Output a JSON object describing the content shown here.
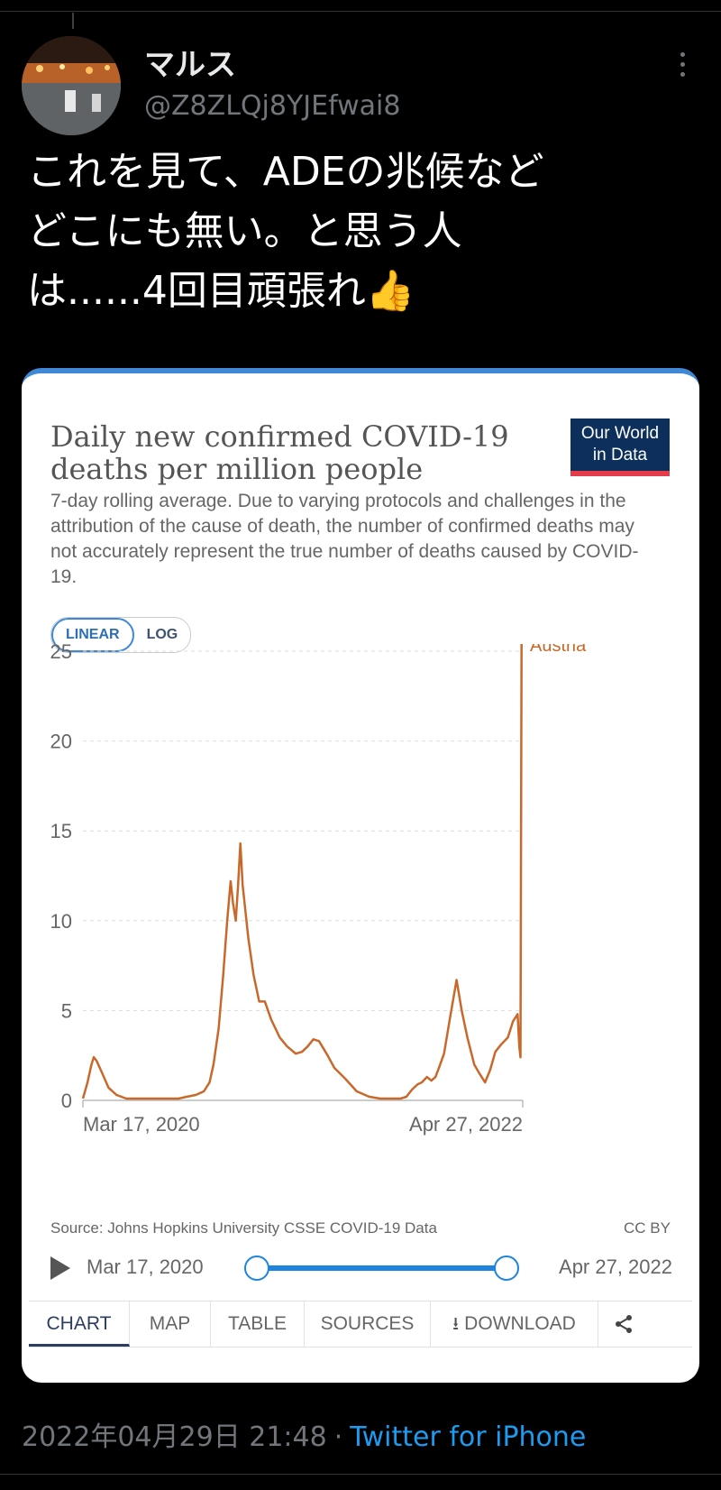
{
  "tweet": {
    "display_name": "マルス",
    "handle": "@Z8ZLQj8YJEfwai8",
    "text_line1": "これを見て、ADEの兆候など",
    "text_line2": "どこにも無い。と思う人",
    "text_line3": "は......4回目頑張れ",
    "emoji": "👍",
    "timestamp": "2022年04月29日 21:48",
    "separator": "·",
    "client": "Twitter for iPhone"
  },
  "card": {
    "title": "Daily new confirmed COVID-19 deaths per million people",
    "logo_line1": "Our World",
    "logo_line2": "in Data",
    "subtitle": "7-day rolling average. Due to varying protocols and challenges in the attribution of the cause of death, the number of confirmed deaths may not accurately represent the true number of deaths caused by COVID-19.",
    "scale_linear": "LINEAR",
    "scale_log": "LOG",
    "source": "Source: Johns Hopkins University CSSE COVID-19 Data",
    "license": "CC BY",
    "timeline_start": "Mar 17, 2020",
    "timeline_end": "Apr 27, 2022",
    "tabs": [
      "CHART",
      "MAP",
      "TABLE",
      "SOURCES",
      "DOWNLOAD"
    ],
    "download_icon": "download-icon",
    "share_icon": "share-icon",
    "accent": "#3f88d6",
    "series_color": "#c8692b"
  },
  "chart_data": {
    "type": "line",
    "title": "Daily new confirmed COVID-19 deaths per million people",
    "ylim": [
      0,
      25
    ],
    "yticks": [
      0,
      5,
      10,
      15,
      20,
      25
    ],
    "xlabels": [
      "Mar 17, 2020",
      "Apr 27, 2022"
    ],
    "grid": true,
    "series": [
      {
        "name": "Austria",
        "x": [
          "2020-03-17",
          "2020-03-25",
          "2020-04-01",
          "2020-04-05",
          "2020-04-10",
          "2020-04-20",
          "2020-05-01",
          "2020-05-15",
          "2020-06-01",
          "2020-07-01",
          "2020-08-01",
          "2020-09-01",
          "2020-09-15",
          "2020-10-01",
          "2020-10-15",
          "2020-10-25",
          "2020-11-01",
          "2020-11-10",
          "2020-11-18",
          "2020-11-25",
          "2020-12-01",
          "2020-12-05",
          "2020-12-10",
          "2020-12-14",
          "2020-12-18",
          "2020-12-22",
          "2021-01-01",
          "2021-01-10",
          "2021-01-20",
          "2021-01-30",
          "2021-02-10",
          "2021-02-25",
          "2021-03-10",
          "2021-03-25",
          "2021-04-05",
          "2021-04-15",
          "2021-04-25",
          "2021-05-05",
          "2021-05-20",
          "2021-06-01",
          "2021-06-20",
          "2021-07-10",
          "2021-08-01",
          "2021-08-20",
          "2021-09-01",
          "2021-09-15",
          "2021-09-25",
          "2021-10-05",
          "2021-10-15",
          "2021-10-25",
          "2021-11-01",
          "2021-11-10",
          "2021-11-18",
          "2021-11-25",
          "2021-12-01",
          "2021-12-10",
          "2021-12-20",
          "2022-01-01",
          "2022-01-10",
          "2022-01-20",
          "2022-02-01",
          "2022-02-10",
          "2022-02-20",
          "2022-03-01",
          "2022-03-10",
          "2022-03-20",
          "2022-04-01",
          "2022-04-10",
          "2022-04-18",
          "2022-04-21",
          "2022-04-23",
          "2022-04-25",
          "2022-04-27"
        ],
        "values": [
          0.1,
          1.0,
          2.0,
          2.4,
          2.2,
          1.5,
          0.7,
          0.3,
          0.1,
          0.1,
          0.1,
          0.1,
          0.2,
          0.3,
          0.5,
          1.0,
          2.0,
          4.0,
          7.0,
          10.0,
          12.2,
          11.0,
          10.0,
          12.0,
          14.3,
          12.0,
          9.0,
          7.0,
          5.5,
          5.5,
          4.5,
          3.5,
          3.0,
          2.6,
          2.7,
          3.0,
          3.4,
          3.3,
          2.5,
          1.8,
          1.2,
          0.5,
          0.2,
          0.1,
          0.1,
          0.1,
          0.1,
          0.2,
          0.6,
          0.9,
          1.0,
          1.3,
          1.1,
          1.3,
          1.8,
          2.6,
          4.5,
          6.7,
          5.0,
          3.5,
          2.0,
          1.5,
          1.0,
          1.7,
          2.7,
          3.1,
          3.5,
          4.4,
          4.8,
          3.0,
          2.4,
          25.5,
          25.7
        ]
      }
    ]
  }
}
